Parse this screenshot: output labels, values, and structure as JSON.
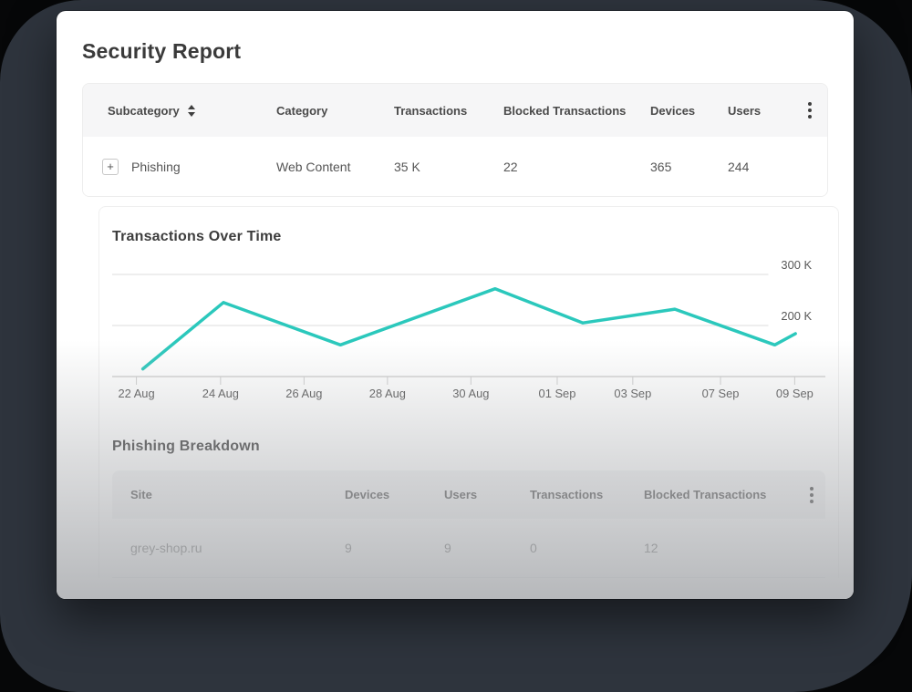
{
  "colors": {
    "accent_line": "#2bc8bc",
    "backdrop": "#2e343d",
    "canvas": "#060708"
  },
  "report": {
    "title": "Security Report"
  },
  "summary_table": {
    "headers": {
      "subcategory": "Subcategory",
      "category": "Category",
      "transactions": "Transactions",
      "blocked": "Blocked Transactions",
      "devices": "Devices",
      "users": "Users"
    },
    "row": {
      "expand": "+",
      "subcategory": "Phishing",
      "category": "Web Content",
      "transactions": "35 K",
      "blocked": "22",
      "devices": "365",
      "users": "244"
    }
  },
  "chart_section": {
    "title": "Transactions Over Time"
  },
  "breakdown": {
    "title": "Phishing Breakdown",
    "headers": {
      "site": "Site",
      "devices": "Devices",
      "users": "Users",
      "transactions": "Transactions",
      "blocked": "Blocked Transactions"
    },
    "row": {
      "site": "grey-shop.ru",
      "devices": "9",
      "users": "9",
      "transactions": "0",
      "blocked": "12"
    }
  },
  "chart_data": {
    "type": "line",
    "title": "Transactions Over Time",
    "line_color": "#2bc8bc",
    "grid": "horizontal-only",
    "legend": "none",
    "y_axis": {
      "label_side": "right",
      "baseline_value_k": 100,
      "gridlines": [
        {
          "value_k": 300,
          "label": "300 K"
        },
        {
          "value_k": 200,
          "label": "200 K"
        }
      ]
    },
    "x_ticks": [
      {
        "label": "22 Aug",
        "f": 0.034
      },
      {
        "label": "24 Aug",
        "f": 0.152
      },
      {
        "label": "26 Aug",
        "f": 0.269
      },
      {
        "label": "28 Aug",
        "f": 0.386
      },
      {
        "label": "30 Aug",
        "f": 0.503
      },
      {
        "label": "01 Sep",
        "f": 0.624
      },
      {
        "label": "03 Sep",
        "f": 0.73
      },
      {
        "label": "07 Sep",
        "f": 0.853
      },
      {
        "label": "09 Sep",
        "f": 0.957
      }
    ],
    "points": [
      {
        "date": "22 Aug",
        "value_k": 115,
        "f": 0.043
      },
      {
        "date": "24 Aug",
        "value_k": 245,
        "f": 0.156
      },
      {
        "date": "27 Aug",
        "value_k": 162,
        "f": 0.32
      },
      {
        "date": "31 Aug",
        "value_k": 272,
        "f": 0.537
      },
      {
        "date": "02 Sep",
        "value_k": 205,
        "f": 0.66
      },
      {
        "date": "05 Sep",
        "value_k": 232,
        "f": 0.789
      },
      {
        "date": "08 Sep",
        "value_k": 162,
        "f": 0.929
      },
      {
        "date": "09 Sep",
        "value_k": 184,
        "f": 0.958
      }
    ]
  }
}
